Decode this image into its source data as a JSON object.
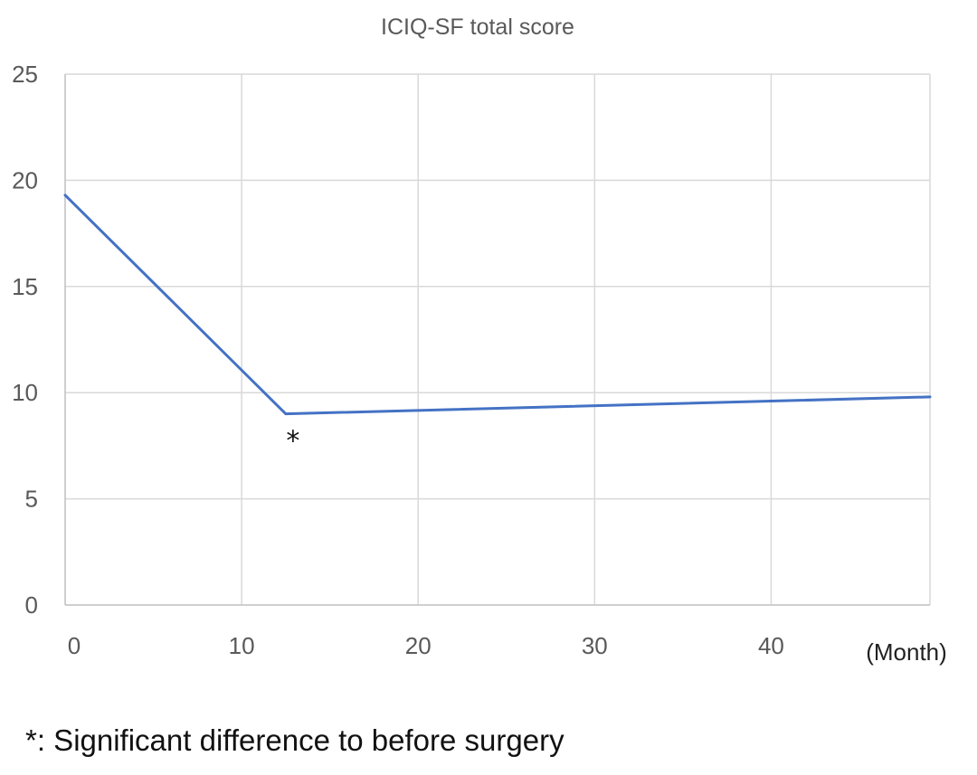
{
  "chart_data": {
    "type": "line",
    "title": "ICIQ-SF total score",
    "xlabel": "(Month)",
    "ylabel": "",
    "xlim": [
      0,
      49
    ],
    "ylim": [
      0,
      25
    ],
    "x_ticks": [
      0,
      10,
      20,
      30,
      40
    ],
    "y_ticks": [
      0,
      5,
      10,
      15,
      20,
      25
    ],
    "grid": true,
    "legend": "none",
    "series": [
      {
        "color": "#4472C4",
        "x": [
          0,
          12.5,
          49
        ],
        "y": [
          19.3,
          9,
          9.8
        ]
      }
    ],
    "annotations": [
      {
        "x": 12.5,
        "text": "*"
      }
    ],
    "footnote": "*: Significant difference to before surgery"
  }
}
